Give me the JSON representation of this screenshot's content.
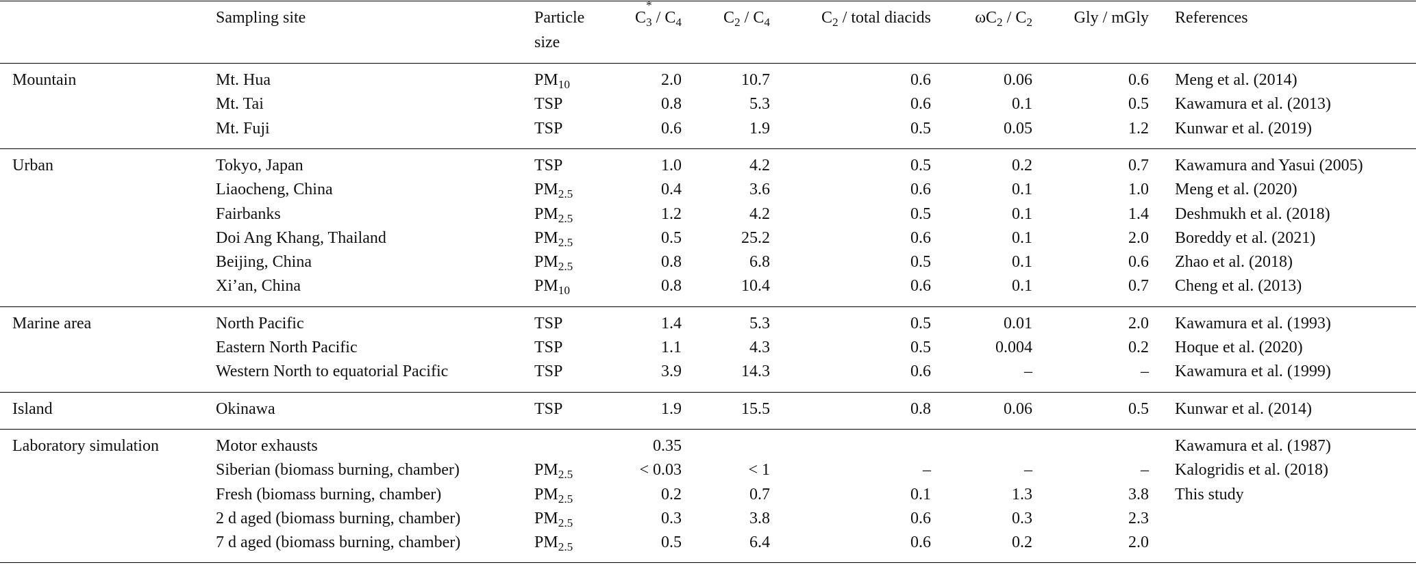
{
  "table": {
    "columns": [
      "Sampling site",
      "Particle size",
      "C3* / C4",
      "C2 / C4",
      "C2 / total diacids",
      "ωC2 / C2",
      "Gly / mGly",
      "References"
    ],
    "groups": [
      {
        "name": "Mountain",
        "rows": [
          [
            "Mt. Hua",
            "PM10",
            "2.0",
            "10.7",
            "0.6",
            "0.06",
            "0.6",
            "Meng et al. (2014)"
          ],
          [
            "Mt. Tai",
            "TSP",
            "0.8",
            "5.3",
            "0.6",
            "0.1",
            "0.5",
            "Kawamura et al. (2013)"
          ],
          [
            "Mt. Fuji",
            "TSP",
            "0.6",
            "1.9",
            "0.5",
            "0.05",
            "1.2",
            "Kunwar et al. (2019)"
          ]
        ]
      },
      {
        "name": "Urban",
        "rows": [
          [
            "Tokyo, Japan",
            "TSP",
            "1.0",
            "4.2",
            "0.5",
            "0.2",
            "0.7",
            "Kawamura and Yasui (2005)"
          ],
          [
            "Liaocheng, China",
            "PM2.5",
            "0.4",
            "3.6",
            "0.6",
            "0.1",
            "1.0",
            "Meng et al. (2020)"
          ],
          [
            "Fairbanks",
            "PM2.5",
            "1.2",
            "4.2",
            "0.5",
            "0.1",
            "1.4",
            "Deshmukh et al. (2018)"
          ],
          [
            "Doi Ang Khang, Thailand",
            "PM2.5",
            "0.5",
            "25.2",
            "0.6",
            "0.1",
            "2.0",
            "Boreddy et al. (2021)"
          ],
          [
            "Beijing, China",
            "PM2.5",
            "0.8",
            "6.8",
            "0.5",
            "0.1",
            "0.6",
            "Zhao et al. (2018)"
          ],
          [
            "Xi’an, China",
            "PM10",
            "0.8",
            "10.4",
            "0.6",
            "0.1",
            "0.7",
            "Cheng et al. (2013)"
          ]
        ]
      },
      {
        "name": "Marine area",
        "rows": [
          [
            "North Pacific",
            "TSP",
            "1.4",
            "5.3",
            "0.5",
            "0.01",
            "2.0",
            "Kawamura et al. (1993)"
          ],
          [
            "Eastern North Pacific",
            "TSP",
            "1.1",
            "4.3",
            "0.5",
            "0.004",
            "0.2",
            "Hoque et al. (2020)"
          ],
          [
            "Western North to equatorial Pacific",
            "TSP",
            "3.9",
            "14.3",
            "0.6",
            "–",
            "–",
            "Kawamura et al. (1999)"
          ]
        ]
      },
      {
        "name": "Island",
        "rows": [
          [
            "Okinawa",
            "TSP",
            "1.9",
            "15.5",
            "0.8",
            "0.06",
            "0.5",
            "Kunwar et al. (2014)"
          ]
        ]
      },
      {
        "name": "Laboratory simulation",
        "rows": [
          [
            "Motor exhausts",
            null,
            "0.35",
            null,
            null,
            null,
            null,
            "Kawamura et al. (1987)"
          ],
          [
            "Siberian (biomass burning, chamber)",
            "PM2.5",
            "< 0.03",
            "< 1",
            "–",
            "–",
            "–",
            "Kalogridis et al. (2018)"
          ],
          [
            "Fresh (biomass burning, chamber)",
            "PM2.5",
            "0.2",
            "0.7",
            "0.1",
            "1.3",
            "3.8",
            "This study"
          ],
          [
            "2 d aged (biomass burning, chamber)",
            "PM2.5",
            "0.3",
            "3.8",
            "0.6",
            "0.3",
            "2.3",
            null
          ],
          [
            "7 d aged (biomass burning, chamber)",
            "PM2.5",
            "0.5",
            "6.4",
            "0.6",
            "0.2",
            "2.0",
            null
          ]
        ]
      }
    ]
  }
}
